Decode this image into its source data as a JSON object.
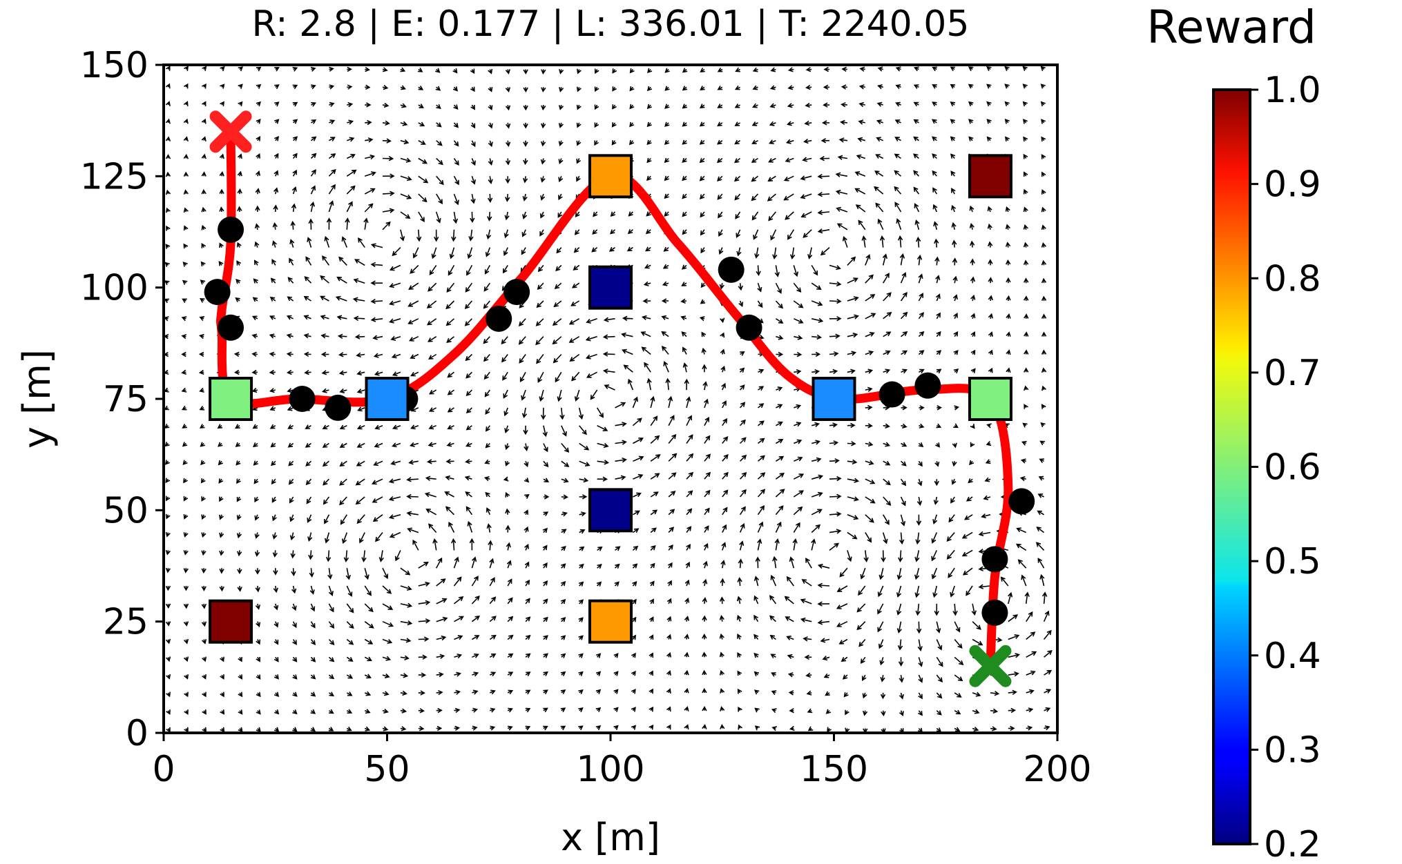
{
  "chart_data": {
    "type": "scatter",
    "title": "R: 2.8 | E: 0.177 | L: 336.01 | T: 2240.05",
    "xlabel": "x [m]",
    "ylabel": "y [m]",
    "xlim": [
      0,
      200
    ],
    "ylim": [
      0,
      150
    ],
    "xticks": [
      "0",
      "50",
      "100",
      "150",
      "200"
    ],
    "yticks": [
      "0",
      "25",
      "50",
      "75",
      "100",
      "125",
      "150"
    ],
    "grid": false,
    "vector_field": "quiver",
    "targets": [
      {
        "x": 15,
        "y": 75,
        "reward": 0.6,
        "color": "#80f080"
      },
      {
        "x": 50,
        "y": 75,
        "reward": 0.4,
        "color": "#1a8cff"
      },
      {
        "x": 100,
        "y": 125,
        "reward": 0.8,
        "color": "#ff9900"
      },
      {
        "x": 100,
        "y": 100,
        "reward": 0.2,
        "color": "#00008b"
      },
      {
        "x": 100,
        "y": 50,
        "reward": 0.2,
        "color": "#00008b"
      },
      {
        "x": 100,
        "y": 25,
        "reward": 0.8,
        "color": "#ff9900"
      },
      {
        "x": 15,
        "y": 25,
        "reward": 1.0,
        "color": "#800000"
      },
      {
        "x": 185,
        "y": 125,
        "reward": 1.0,
        "color": "#800000"
      },
      {
        "x": 150,
        "y": 75,
        "reward": 0.4,
        "color": "#1a8cff"
      },
      {
        "x": 185,
        "y": 75,
        "reward": 0.6,
        "color": "#80f080"
      }
    ],
    "waypoints": [
      {
        "x": 15,
        "y": 113
      },
      {
        "x": 12,
        "y": 99
      },
      {
        "x": 15,
        "y": 91
      },
      {
        "x": 31,
        "y": 75
      },
      {
        "x": 39,
        "y": 73
      },
      {
        "x": 54,
        "y": 75
      },
      {
        "x": 75,
        "y": 93
      },
      {
        "x": 79,
        "y": 99
      },
      {
        "x": 127,
        "y": 104
      },
      {
        "x": 131,
        "y": 91
      },
      {
        "x": 163,
        "y": 76
      },
      {
        "x": 171,
        "y": 78
      },
      {
        "x": 192,
        "y": 52
      },
      {
        "x": 186,
        "y": 39
      },
      {
        "x": 186,
        "y": 27
      }
    ],
    "trajectory": {
      "color": "#ff0000",
      "x": [
        15,
        15,
        13,
        13,
        15,
        30,
        50,
        65,
        80,
        100,
        115,
        128,
        140,
        152,
        170,
        185,
        189,
        186,
        185
      ],
      "y": [
        135,
        110,
        95,
        90,
        75,
        75,
        75,
        85,
        102,
        125,
        110,
        94,
        80,
        75,
        77,
        75,
        55,
        35,
        15
      ]
    },
    "start": {
      "x": 15,
      "y": 135,
      "marker": "X",
      "color": "#ff2020"
    },
    "end": {
      "x": 185,
      "y": 15,
      "marker": "X",
      "color": "#1e8c1e"
    },
    "colorbar": {
      "label": "Reward",
      "min": 0.2,
      "max": 1.0,
      "ticks": [
        "0.2",
        "0.3",
        "0.4",
        "0.5",
        "0.6",
        "0.7",
        "0.8",
        "0.9",
        "1.0"
      ],
      "colormap": "jet"
    }
  }
}
